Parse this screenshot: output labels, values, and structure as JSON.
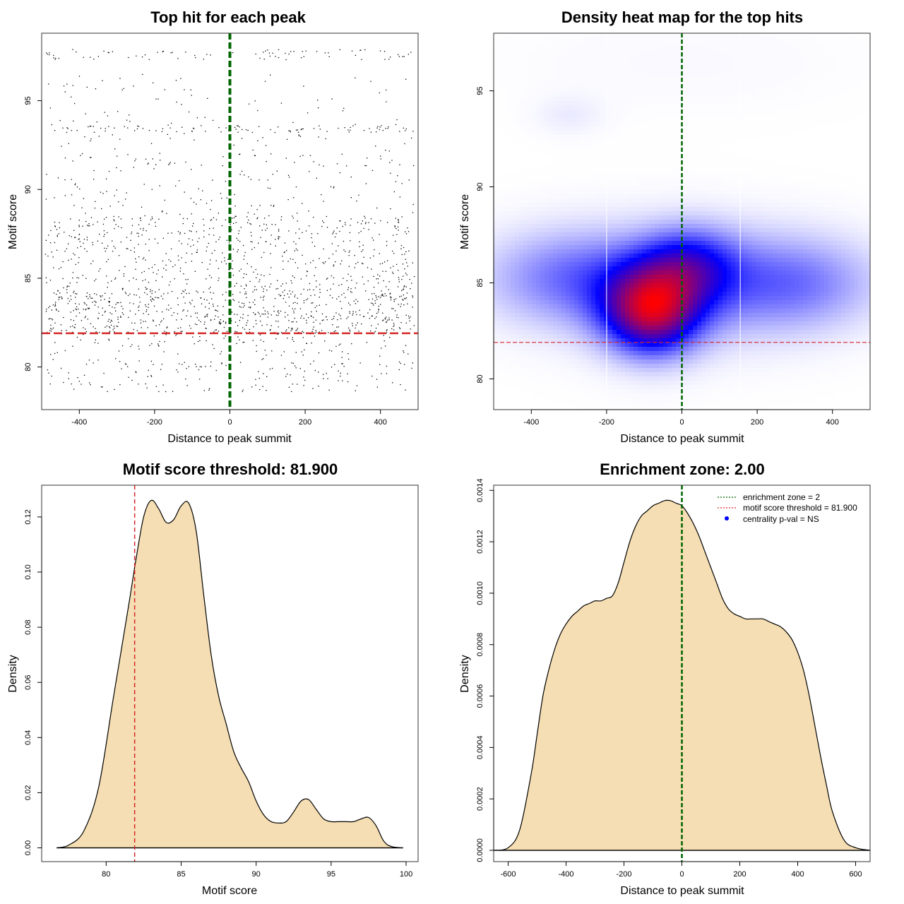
{
  "colors": {
    "points": "#000000",
    "threshold": "#d62728",
    "zone": "#006400",
    "fill": "#f5deb3",
    "heat_low": "#ffffff",
    "heat_mid": "#0000ff",
    "heat_high": "#ff0000",
    "legend_dot": "#0000ff"
  },
  "chart_data": [
    {
      "id": "scatter",
      "type": "scatter",
      "title": "Top hit for each peak",
      "xlabel": "Distance to peak summit",
      "ylabel": "Motif score",
      "xlim": [
        -500,
        500
      ],
      "ylim": [
        77.6,
        98.8
      ],
      "xticks": [
        -400,
        -200,
        0,
        200,
        400
      ],
      "yticks": [
        80,
        85,
        90,
        95
      ],
      "threshold_y": 81.9,
      "zone_x": 0,
      "point_clusters": [
        {
          "score_min": 78.6,
          "score_max": 81.9,
          "n": 260
        },
        {
          "score_min": 81.9,
          "score_max": 84.5,
          "n": 720
        },
        {
          "score_min": 84.5,
          "score_max": 88.5,
          "n": 600
        },
        {
          "score_min": 88.5,
          "score_max": 92.0,
          "n": 170
        },
        {
          "score_min": 93.2,
          "score_max": 93.6,
          "n": 90
        },
        {
          "score_min": 92.0,
          "score_max": 96.5,
          "n": 110
        },
        {
          "score_min": 97.3,
          "score_max": 97.9,
          "n": 80
        }
      ]
    },
    {
      "id": "heatmap",
      "type": "heatmap",
      "title": "Density heat map for the top hits",
      "xlabel": "Distance to peak summit",
      "ylabel": "Motif score",
      "xlim": [
        -500,
        500
      ],
      "ylim": [
        78.4,
        98.0
      ],
      "xticks": [
        -400,
        -200,
        0,
        200,
        400
      ],
      "yticks": [
        80,
        85,
        90,
        95
      ],
      "threshold_y": 81.9,
      "zone_x": 0,
      "zone_bounds": [
        -200,
        2,
        155
      ],
      "density_kernels": [
        {
          "x": -80,
          "y": 83.5,
          "w": 1.0,
          "sx": 90,
          "sy": 1.6
        },
        {
          "x": 20,
          "y": 86.0,
          "w": 0.45,
          "sx": 90,
          "sy": 1.4
        },
        {
          "x": -300,
          "y": 85.3,
          "w": 0.35,
          "sx": 170,
          "sy": 1.8
        },
        {
          "x": 300,
          "y": 85.0,
          "w": 0.35,
          "sx": 170,
          "sy": 1.8
        },
        {
          "x": 0,
          "y": 84.8,
          "w": 0.25,
          "sx": 260,
          "sy": 2.4
        },
        {
          "x": -300,
          "y": 93.7,
          "w": 0.09,
          "sx": 70,
          "sy": 0.8
        },
        {
          "x": 0,
          "y": 96.5,
          "w": 0.04,
          "sx": 350,
          "sy": 2.0
        }
      ]
    },
    {
      "id": "score_density",
      "type": "area",
      "title": "Motif score threshold: 81.900",
      "xlabel": "Motif score",
      "ylabel": "Density",
      "xlim": [
        75.7,
        100.8
      ],
      "ylim": [
        -0.005,
        0.1315
      ],
      "xticks": [
        80,
        85,
        90,
        95,
        100
      ],
      "yticks": [
        0.0,
        0.02,
        0.04,
        0.06,
        0.08,
        0.1,
        0.12
      ],
      "ytick_labels": [
        "0.00",
        "0.02",
        "0.04",
        "0.06",
        "0.08",
        "0.10",
        "0.12"
      ],
      "threshold_x": 81.9,
      "x": [
        76.7,
        77.5,
        78.5,
        79.5,
        80.5,
        81.5,
        82.0,
        82.5,
        83.0,
        83.5,
        84.0,
        84.5,
        85.0,
        85.5,
        86.0,
        86.5,
        87.0,
        87.5,
        88.0,
        88.5,
        89.0,
        89.5,
        90.0,
        90.5,
        91.0,
        91.5,
        92.0,
        92.5,
        93.0,
        93.5,
        94.0,
        94.5,
        95.0,
        95.5,
        96.0,
        96.5,
        97.0,
        97.5,
        98.0,
        98.5,
        99.0,
        99.8
      ],
      "y": [
        0.0,
        0.001,
        0.006,
        0.022,
        0.055,
        0.088,
        0.105,
        0.12,
        0.126,
        0.123,
        0.118,
        0.119,
        0.124,
        0.125,
        0.115,
        0.092,
        0.07,
        0.055,
        0.045,
        0.035,
        0.029,
        0.024,
        0.017,
        0.012,
        0.0095,
        0.009,
        0.0095,
        0.013,
        0.017,
        0.0175,
        0.014,
        0.0105,
        0.0095,
        0.0095,
        0.0095,
        0.0095,
        0.0105,
        0.011,
        0.008,
        0.0025,
        0.0005,
        0.0
      ]
    },
    {
      "id": "distance_density",
      "type": "area",
      "title": "Enrichment zone: 2.00",
      "xlabel": "Distance to peak summit",
      "ylabel": "Density",
      "xlim": [
        -650,
        650
      ],
      "ylim": [
        -4.4e-05,
        0.00142
      ],
      "xticks": [
        -600,
        -400,
        -200,
        0,
        200,
        400,
        600
      ],
      "yticks": [
        0.0,
        0.0002,
        0.0004,
        0.0006,
        0.0008,
        0.001,
        0.0012,
        0.0014
      ],
      "ytick_labels": [
        "0.0000",
        "0.0002",
        "0.0004",
        "0.0006",
        "0.0008",
        "0.0010",
        "0.0012",
        "0.0014"
      ],
      "zone_x": 0,
      "x": [
        -650,
        -600,
        -560,
        -520,
        -500,
        -480,
        -460,
        -440,
        -420,
        -400,
        -380,
        -360,
        -340,
        -320,
        -300,
        -280,
        -260,
        -240,
        -220,
        -200,
        -180,
        -160,
        -140,
        -120,
        -100,
        -80,
        -60,
        -40,
        -20,
        0,
        20,
        40,
        60,
        80,
        100,
        120,
        140,
        160,
        180,
        200,
        220,
        240,
        260,
        280,
        300,
        320,
        340,
        360,
        380,
        400,
        420,
        440,
        460,
        480,
        500,
        520,
        560,
        600,
        650
      ],
      "y": [
        0.0,
        1e-05,
        8e-05,
        0.0003,
        0.00045,
        0.0006,
        0.0007,
        0.00078,
        0.00084,
        0.00088,
        0.00091,
        0.00093,
        0.00095,
        0.00096,
        0.00097,
        0.00097,
        0.00098,
        0.00099,
        0.00104,
        0.00112,
        0.0012,
        0.00126,
        0.0013,
        0.00132,
        0.00134,
        0.00135,
        0.00136,
        0.00136,
        0.00135,
        0.00134,
        0.00131,
        0.00127,
        0.00122,
        0.00116,
        0.0011,
        0.00104,
        0.00098,
        0.00094,
        0.00092,
        0.00091,
        0.0009,
        0.0009,
        0.0009,
        0.0009,
        0.00089,
        0.00088,
        0.00087,
        0.00085,
        0.00082,
        0.00077,
        0.0007,
        0.0006,
        0.00048,
        0.00036,
        0.00025,
        0.00015,
        4e-05,
        1e-05,
        0.0
      ],
      "legend": [
        {
          "label": "enrichment zone = 2",
          "style": "dotted-green"
        },
        {
          "label": "motif score threshold = 81.900",
          "style": "dotted-red"
        },
        {
          "label": "centrality p-val = NS",
          "style": "blue-dot"
        }
      ]
    }
  ]
}
